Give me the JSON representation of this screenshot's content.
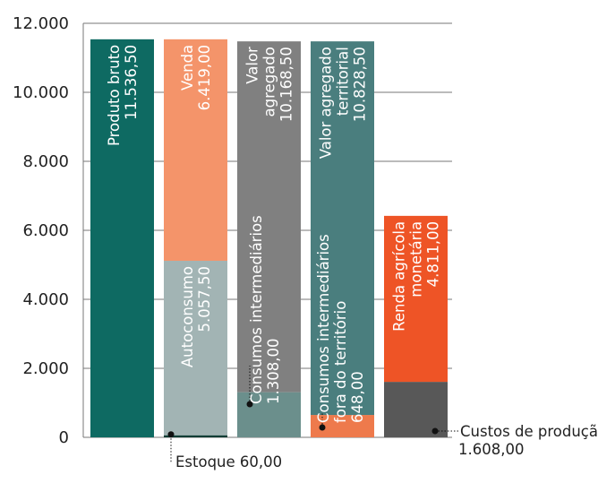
{
  "chart_data": {
    "type": "bar",
    "ylim": [
      0,
      12000
    ],
    "yticks": [
      {
        "value": 0,
        "label": "0"
      },
      {
        "value": 2000,
        "label": "2.000"
      },
      {
        "value": 4000,
        "label": "4.000"
      },
      {
        "value": 6000,
        "label": "6.000"
      },
      {
        "value": 8000,
        "label": "8.000"
      },
      {
        "value": 10000,
        "label": "10.000"
      },
      {
        "value": 12000,
        "label": "12.000"
      }
    ],
    "grid": false,
    "bars": [
      {
        "segments": [
          {
            "value": 11536.5,
            "label": [
              "Produto bruto",
              "11.536,50"
            ],
            "color": "#0e6a62"
          }
        ]
      },
      {
        "segments": [
          {
            "value": 60,
            "label": [],
            "color": "#0d3d35"
          },
          {
            "value": 5057.5,
            "label": [
              "Autoconsumo",
              "5.057,50"
            ],
            "color": "#a2b4b4"
          },
          {
            "value": 6419,
            "label": [
              "Venda",
              "6.419,00"
            ],
            "color": "#f4946a"
          }
        ]
      },
      {
        "segments": [
          {
            "value": 1308,
            "label": [],
            "color": "#6b8f8c"
          },
          {
            "value": 10168.5,
            "label": [
              "Valor",
              "agregado",
              "10.168,50"
            ],
            "color": "#808080"
          }
        ]
      },
      {
        "segments": [
          {
            "value": 648,
            "label": [],
            "color": "#ee7a4c"
          },
          {
            "value": 10828.5,
            "label": [
              "Valor agregado",
              "territorial",
              "10.828,50"
            ],
            "color": "#4a7e7e"
          }
        ]
      },
      {
        "segments": [
          {
            "value": 1608,
            "label": [],
            "color": "#585858"
          },
          {
            "value": 4811,
            "label": [
              "Renda agrícola",
              "monetária",
              "4.811,00"
            ],
            "color": "#ee5426"
          }
        ]
      }
    ],
    "annotations": {
      "estoque": {
        "value": 60,
        "text": "Estoque 60,00"
      },
      "consumos_intermediarios": {
        "value": 1308,
        "lines": [
          "Consumos intermediários",
          "1.308,00"
        ]
      },
      "consumos_fora": {
        "value": 648,
        "lines": [
          "Consumos intermediários",
          "fora do território",
          "648,00"
        ]
      },
      "custos_producao": {
        "value": 1608,
        "lines": [
          "Custos de produção",
          "1.608,00"
        ]
      }
    }
  }
}
